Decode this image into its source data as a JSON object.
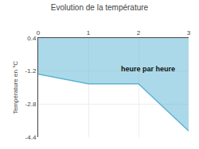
{
  "chart_data": {
    "type": "area",
    "title": "Evolution de la température",
    "y_label": "Température en °C",
    "x": [
      0,
      1,
      2,
      2.1,
      3
    ],
    "values": [
      -1.35,
      -1.82,
      -1.82,
      -2.05,
      -4.1
    ],
    "fill_to": 0.4,
    "color": "#5ab4d4",
    "xlim": [
      0,
      3
    ],
    "xticks": [
      0,
      1,
      2,
      3
    ],
    "ylim": [
      -4.4,
      0.4
    ],
    "yticks": [
      -4.4,
      -2.8,
      -1.2,
      0.4
    ],
    "grid": true,
    "annotations": [
      {
        "text": "heure par heure",
        "x": 1.62,
        "y": -1.1
      }
    ]
  }
}
